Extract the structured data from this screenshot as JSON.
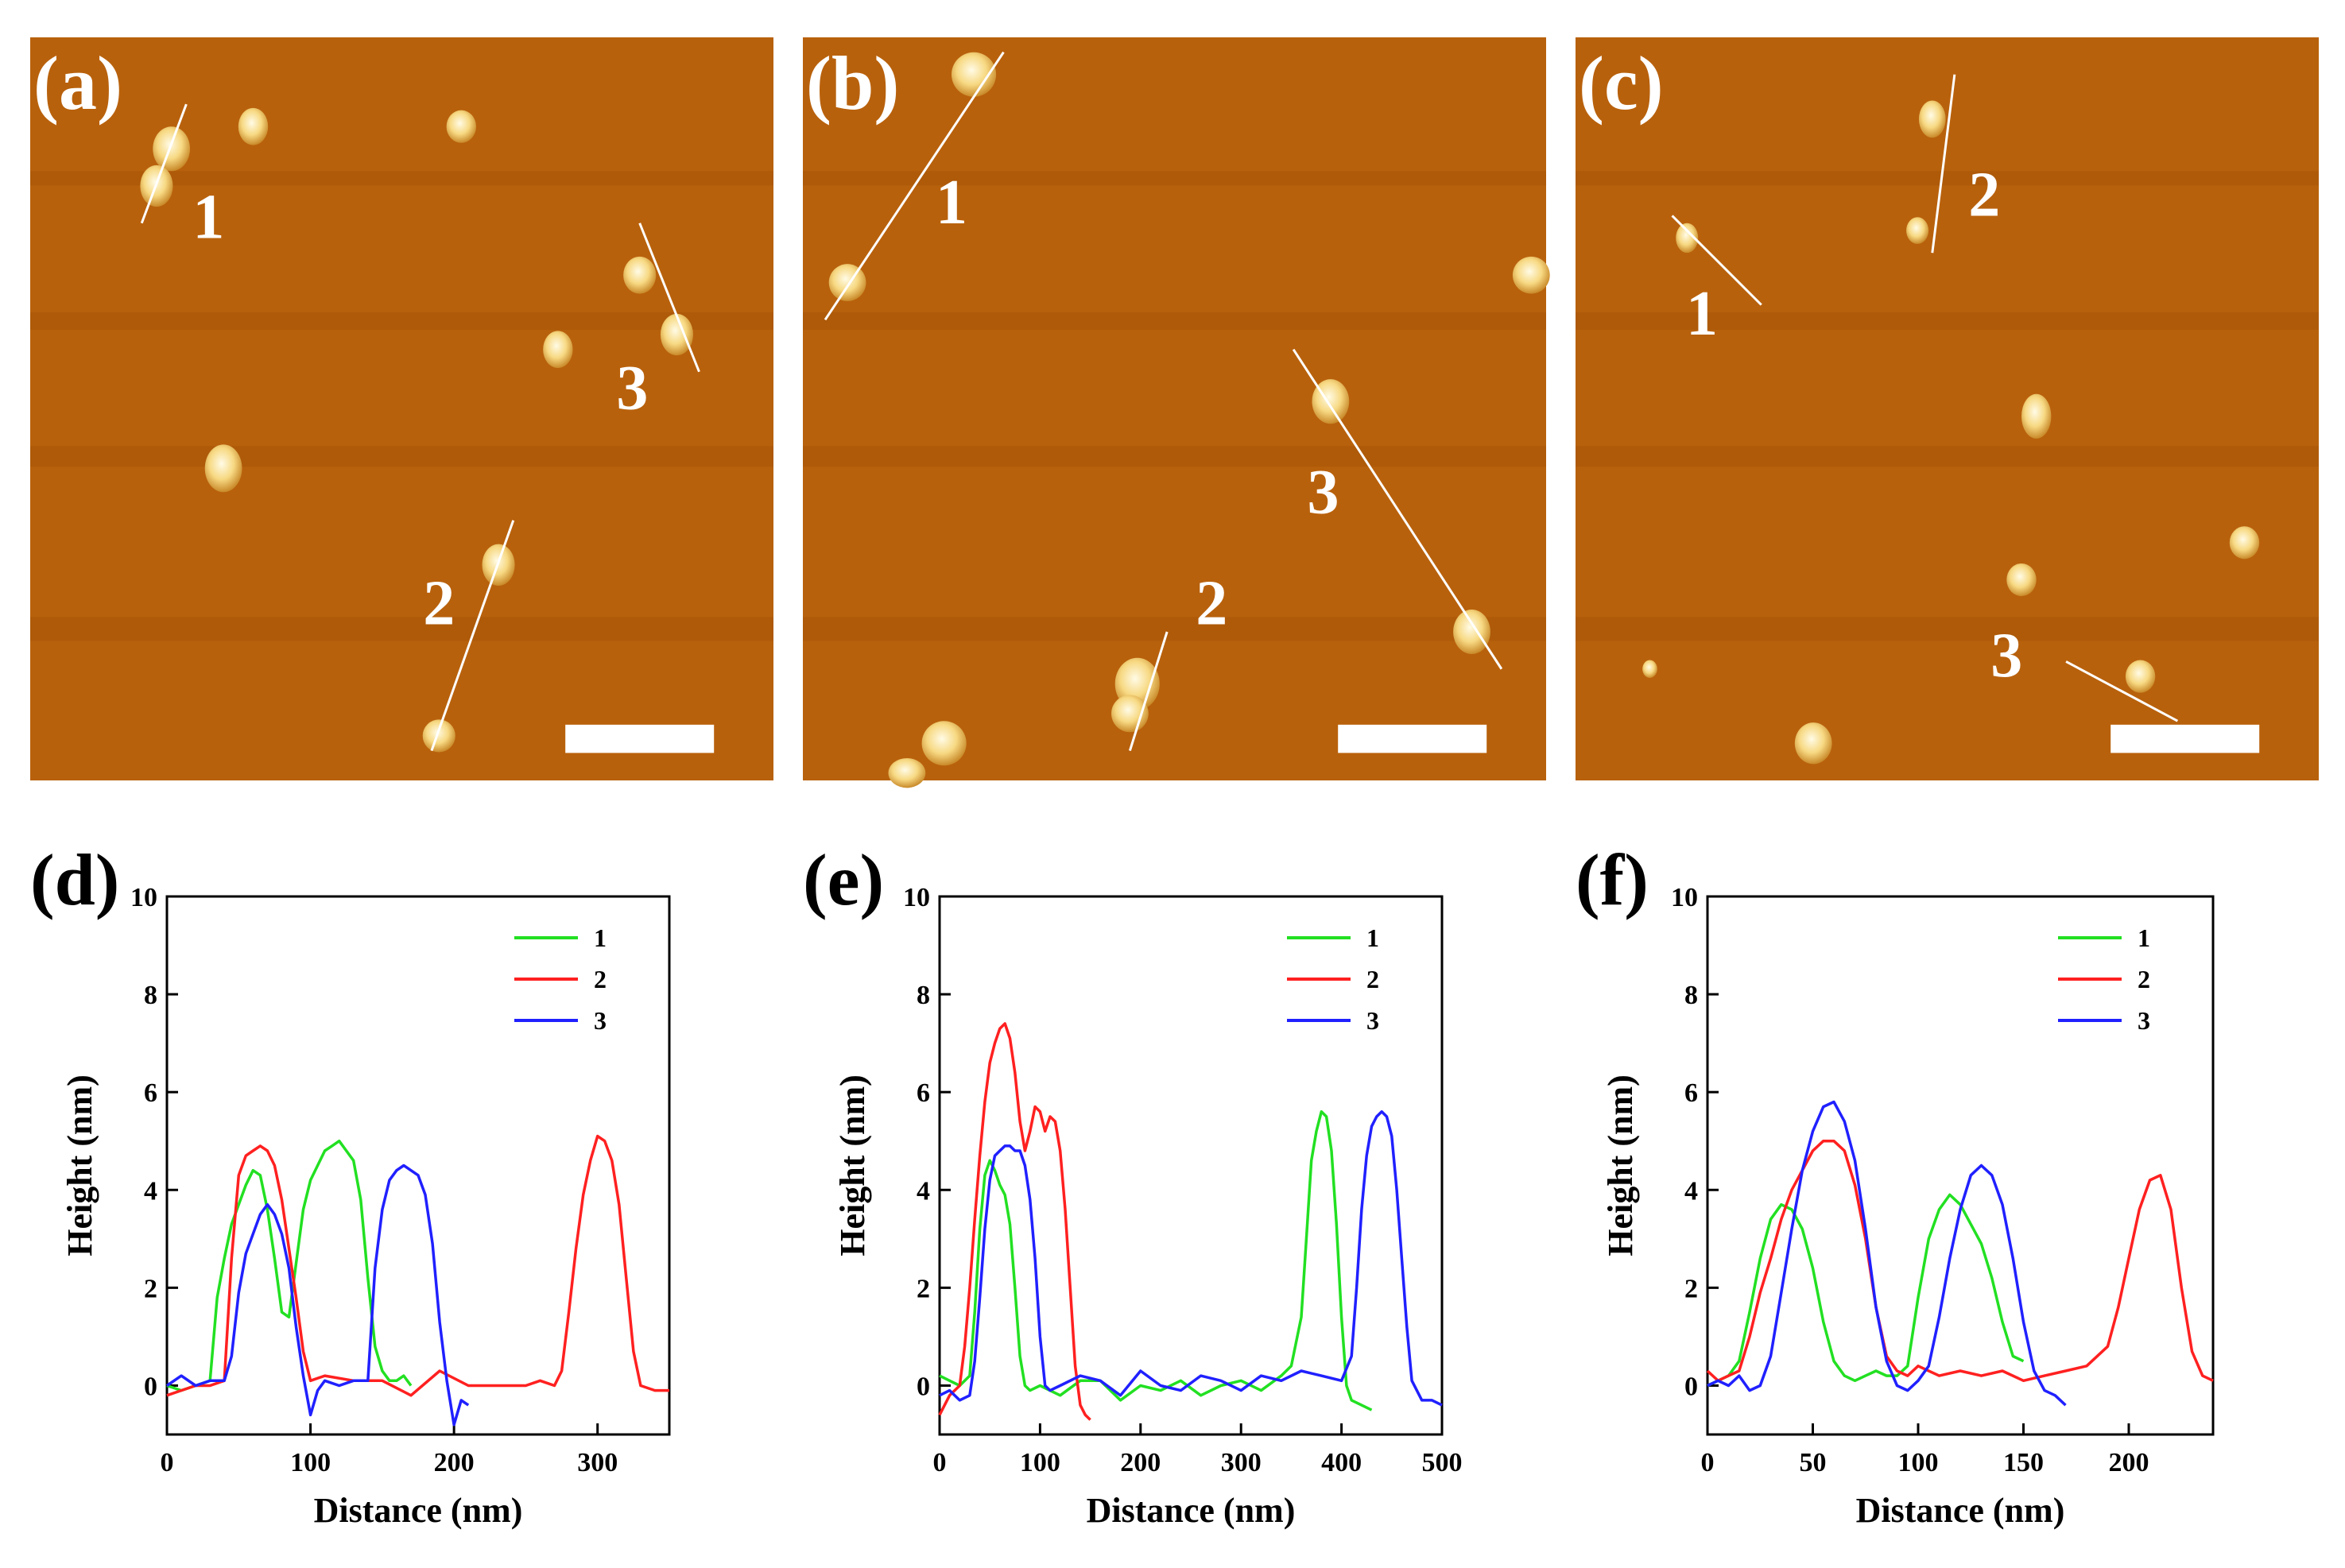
{
  "figure": {
    "panels_afm": [
      {
        "letter": "(a)",
        "line_labels": [
          "1",
          "2",
          "3"
        ]
      },
      {
        "letter": "(b)",
        "line_labels": [
          "1",
          "2",
          "3"
        ]
      },
      {
        "letter": "(c)",
        "line_labels": [
          "1",
          "2",
          "3"
        ]
      }
    ],
    "colors": {
      "afm_background": "#b8610c",
      "particle": "#fff1b3",
      "series_1": "#22e022",
      "series_2": "#ff2020",
      "series_3": "#2020ff"
    }
  },
  "chart_data": [
    {
      "panel": "(d)",
      "type": "line",
      "xlabel": "Distance (nm)",
      "ylabel": "Height (nm)",
      "xlim": [
        0,
        350
      ],
      "ylim": [
        -1,
        10
      ],
      "xticks": [
        0,
        100,
        200,
        300
      ],
      "yticks": [
        0,
        2,
        4,
        6,
        8,
        10
      ],
      "legend": [
        "1",
        "2",
        "3"
      ],
      "series": [
        {
          "name": "1",
          "x": [
            0,
            10,
            20,
            30,
            35,
            40,
            45,
            50,
            55,
            60,
            65,
            70,
            75,
            80,
            85,
            90,
            95,
            100,
            105,
            110,
            115,
            120,
            125,
            130,
            135,
            140,
            145,
            150,
            155,
            160,
            165,
            170
          ],
          "y": [
            0,
            -0.1,
            0,
            0.1,
            1.8,
            2.6,
            3.3,
            3.7,
            4.1,
            4.4,
            4.3,
            3.6,
            2.6,
            1.5,
            1.4,
            2.5,
            3.6,
            4.2,
            4.5,
            4.8,
            4.9,
            5.0,
            4.8,
            4.6,
            3.8,
            2.2,
            0.8,
            0.3,
            0.1,
            0.1,
            0.2,
            0
          ]
        },
        {
          "name": "2",
          "x": [
            0,
            10,
            20,
            30,
            40,
            45,
            50,
            55,
            60,
            65,
            70,
            75,
            80,
            85,
            90,
            95,
            100,
            110,
            130,
            150,
            170,
            190,
            210,
            230,
            250,
            260,
            270,
            275,
            280,
            285,
            290,
            295,
            300,
            305,
            310,
            315,
            320,
            325,
            330,
            340,
            350
          ],
          "y": [
            -0.2,
            -0.1,
            0,
            0,
            0.1,
            2.6,
            4.3,
            4.7,
            4.8,
            4.9,
            4.8,
            4.5,
            3.8,
            2.8,
            1.8,
            0.7,
            0.1,
            0.2,
            0.1,
            0.1,
            -0.2,
            0.3,
            0,
            0,
            0,
            0.1,
            0,
            0.3,
            1.5,
            2.8,
            3.9,
            4.6,
            5.1,
            5.0,
            4.6,
            3.7,
            2.2,
            0.7,
            0,
            -0.1,
            -0.1
          ]
        },
        {
          "name": "3",
          "x": [
            0,
            10,
            20,
            30,
            40,
            45,
            50,
            55,
            60,
            65,
            70,
            75,
            80,
            85,
            90,
            95,
            100,
            105,
            110,
            120,
            130,
            140,
            145,
            150,
            155,
            160,
            165,
            170,
            175,
            180,
            185,
            190,
            195,
            200,
            205,
            210
          ],
          "y": [
            0,
            0.2,
            0,
            0.1,
            0.1,
            0.6,
            1.9,
            2.7,
            3.1,
            3.5,
            3.7,
            3.5,
            3.1,
            2.4,
            1.2,
            0.2,
            -0.6,
            -0.1,
            0.1,
            0,
            0.1,
            0.1,
            2.4,
            3.6,
            4.2,
            4.4,
            4.5,
            4.4,
            4.3,
            3.9,
            2.9,
            1.3,
            0.1,
            -0.8,
            -0.3,
            -0.4
          ]
        }
      ]
    },
    {
      "panel": "(e)",
      "type": "line",
      "xlabel": "Distance (nm)",
      "ylabel": "Height (nm)",
      "xlim": [
        0,
        500
      ],
      "ylim": [
        -1,
        10
      ],
      "xticks": [
        0,
        100,
        200,
        300,
        400,
        500
      ],
      "yticks": [
        0,
        2,
        4,
        6,
        8,
        10
      ],
      "legend": [
        "1",
        "2",
        "3"
      ],
      "series": [
        {
          "name": "1",
          "x": [
            0,
            10,
            20,
            30,
            35,
            40,
            45,
            50,
            55,
            60,
            65,
            70,
            75,
            80,
            85,
            90,
            100,
            120,
            140,
            160,
            180,
            200,
            220,
            240,
            260,
            280,
            300,
            320,
            340,
            350,
            360,
            365,
            370,
            375,
            380,
            385,
            390,
            395,
            400,
            405,
            410,
            420,
            430
          ],
          "y": [
            0.2,
            0.1,
            0,
            0.2,
            1.5,
            3.2,
            4.3,
            4.6,
            4.4,
            4.1,
            3.9,
            3.3,
            2.0,
            0.6,
            0,
            -0.1,
            0,
            -0.2,
            0.1,
            0.1,
            -0.3,
            0,
            -0.1,
            0.1,
            -0.2,
            0,
            0.1,
            -0.1,
            0.2,
            0.4,
            1.4,
            3.0,
            4.6,
            5.2,
            5.6,
            5.5,
            4.8,
            3.3,
            1.4,
            0,
            -0.3,
            -0.4,
            -0.5
          ]
        },
        {
          "name": "2",
          "x": [
            0,
            10,
            20,
            25,
            30,
            35,
            40,
            45,
            50,
            55,
            60,
            65,
            70,
            75,
            80,
            85,
            90,
            95,
            100,
            105,
            110,
            115,
            120,
            125,
            130,
            135,
            140,
            145,
            150
          ],
          "y": [
            -0.6,
            -0.2,
            0,
            0.8,
            2.0,
            3.4,
            4.7,
            5.8,
            6.6,
            7.0,
            7.3,
            7.4,
            7.1,
            6.4,
            5.4,
            4.8,
            5.2,
            5.7,
            5.6,
            5.2,
            5.5,
            5.4,
            4.8,
            3.6,
            2.0,
            0.4,
            -0.4,
            -0.6,
            -0.7
          ]
        },
        {
          "name": "3",
          "x": [
            0,
            10,
            20,
            30,
            35,
            40,
            45,
            50,
            55,
            60,
            65,
            70,
            75,
            80,
            85,
            90,
            95,
            100,
            105,
            110,
            120,
            140,
            160,
            180,
            200,
            220,
            240,
            260,
            280,
            300,
            320,
            340,
            360,
            380,
            400,
            410,
            415,
            420,
            425,
            430,
            435,
            440,
            445,
            450,
            455,
            460,
            465,
            470,
            480,
            490,
            500
          ],
          "y": [
            -0.2,
            -0.1,
            -0.3,
            -0.2,
            0.5,
            1.8,
            3.2,
            4.2,
            4.7,
            4.8,
            4.9,
            4.9,
            4.8,
            4.8,
            4.5,
            3.8,
            2.6,
            1.0,
            0,
            -0.1,
            0,
            0.2,
            0.1,
            -0.2,
            0.3,
            0,
            -0.1,
            0.2,
            0.1,
            -0.1,
            0.2,
            0.1,
            0.3,
            0.2,
            0.1,
            0.6,
            2.0,
            3.6,
            4.7,
            5.3,
            5.5,
            5.6,
            5.5,
            5.1,
            4.0,
            2.6,
            1.2,
            0.1,
            -0.3,
            -0.3,
            -0.4
          ]
        }
      ]
    },
    {
      "panel": "(f)",
      "type": "line",
      "xlabel": "Distance (nm)",
      "ylabel": "Height (nm)",
      "xlim": [
        0,
        240
      ],
      "ylim": [
        -1,
        10
      ],
      "xticks": [
        0,
        50,
        100,
        150,
        200
      ],
      "yticks": [
        0,
        2,
        4,
        6,
        8,
        10
      ],
      "legend": [
        "1",
        "2",
        "3"
      ],
      "series": [
        {
          "name": "1",
          "x": [
            0,
            5,
            10,
            15,
            20,
            25,
            30,
            35,
            40,
            45,
            50,
            55,
            60,
            65,
            70,
            75,
            80,
            85,
            90,
            95,
            100,
            105,
            110,
            115,
            120,
            125,
            130,
            135,
            140,
            145,
            150
          ],
          "y": [
            0,
            0.1,
            0.2,
            0.5,
            1.5,
            2.6,
            3.4,
            3.7,
            3.6,
            3.2,
            2.4,
            1.3,
            0.5,
            0.2,
            0.1,
            0.2,
            0.3,
            0.2,
            0.2,
            0.4,
            1.8,
            3.0,
            3.6,
            3.9,
            3.7,
            3.3,
            2.9,
            2.2,
            1.3,
            0.6,
            0.5
          ]
        },
        {
          "name": "2",
          "x": [
            0,
            5,
            10,
            15,
            20,
            25,
            30,
            35,
            40,
            45,
            50,
            55,
            60,
            65,
            70,
            75,
            80,
            85,
            90,
            95,
            100,
            110,
            120,
            130,
            140,
            150,
            160,
            170,
            180,
            190,
            195,
            200,
            205,
            210,
            215,
            220,
            225,
            230,
            235,
            240
          ],
          "y": [
            0.3,
            0.1,
            0.2,
            0.3,
            1.0,
            1.9,
            2.6,
            3.4,
            4.0,
            4.4,
            4.8,
            5.0,
            5.0,
            4.8,
            4.1,
            3.0,
            1.6,
            0.6,
            0.3,
            0.2,
            0.4,
            0.2,
            0.3,
            0.2,
            0.3,
            0.1,
            0.2,
            0.3,
            0.4,
            0.8,
            1.6,
            2.6,
            3.6,
            4.2,
            4.3,
            3.6,
            2.0,
            0.7,
            0.2,
            0.1
          ]
        },
        {
          "name": "3",
          "x": [
            0,
            5,
            10,
            15,
            20,
            25,
            30,
            35,
            40,
            45,
            50,
            55,
            60,
            65,
            70,
            75,
            80,
            85,
            90,
            95,
            100,
            105,
            110,
            115,
            120,
            125,
            130,
            135,
            140,
            145,
            150,
            155,
            160,
            165,
            170
          ],
          "y": [
            0,
            0.1,
            0,
            0.2,
            -0.1,
            0,
            0.6,
            1.9,
            3.2,
            4.4,
            5.2,
            5.7,
            5.8,
            5.4,
            4.6,
            3.2,
            1.6,
            0.5,
            0,
            -0.1,
            0.1,
            0.4,
            1.4,
            2.6,
            3.6,
            4.3,
            4.5,
            4.3,
            3.7,
            2.6,
            1.3,
            0.3,
            -0.1,
            -0.2,
            -0.4
          ]
        }
      ]
    }
  ]
}
